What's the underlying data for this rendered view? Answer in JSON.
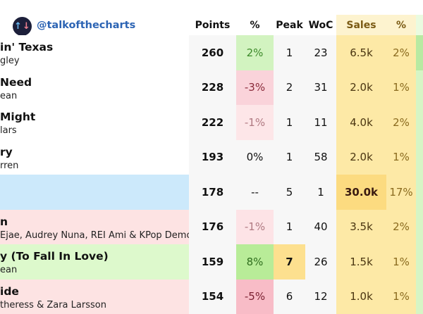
{
  "header": {
    "handle": "@talkofthecharts",
    "logo_icon": "up-down-arrows-icon",
    "columns": [
      "Points",
      "%",
      "Peak",
      "WoC",
      "Sales",
      "%"
    ]
  },
  "colors": {
    "up": "#c9f2b4",
    "down": "#f8c3cc",
    "down_light": "#fde3e6",
    "sales": "#fde9a6",
    "new_entry": "#cce9fb",
    "peak": "#fde08f"
  },
  "rows": [
    {
      "song": "in' Texas",
      "artist": "gley",
      "points": "260",
      "pct": "2%",
      "peak": "1",
      "woc": "23",
      "sales": "6.5k",
      "sales_pct": "2%",
      "row_bg": "#ffffff",
      "pct_bg": "#d2f3c0",
      "pct_color": "#3d8a2a",
      "g_bg": "#b8eaa2"
    },
    {
      "song": "Need",
      "artist": "ean",
      "points": "228",
      "pct": "-3%",
      "peak": "2",
      "woc": "31",
      "sales": "2.0k",
      "sales_pct": "1%",
      "row_bg": "#ffffff",
      "pct_bg": "#fad3da",
      "pct_color": "#8a2a3a"
    },
    {
      "song": "Might",
      "artist": "lars",
      "points": "222",
      "pct": "-1%",
      "peak": "1",
      "woc": "11",
      "sales": "4.0k",
      "sales_pct": "2%",
      "row_bg": "#ffffff",
      "pct_bg": "#fde6e8",
      "pct_color": "#b07a82"
    },
    {
      "song": "ry",
      "artist": "rren",
      "points": "193",
      "pct": "0%",
      "peak": "1",
      "woc": "58",
      "sales": "2.0k",
      "sales_pct": "1%",
      "row_bg": "#ffffff"
    },
    {
      "song": "",
      "artist": "",
      "points": "178",
      "pct": "--",
      "peak": "5",
      "woc": "1",
      "sales": "30.0k",
      "sales_pct": "17%",
      "row_bg": "#cce9fb",
      "sales_bg": "#fcdb80",
      "sales_bold": true
    },
    {
      "song": "n",
      "artist": " Ejae, Audrey Nuna, REI Ami & KPop Demo",
      "points": "176",
      "pct": "-1%",
      "peak": "1",
      "woc": "40",
      "sales": "3.5k",
      "sales_pct": "2%",
      "row_bg": "#fde3e3",
      "pct_bg": "#fde3e6",
      "pct_color": "#b07a82"
    },
    {
      "song": "y (To Fall In Love)",
      "artist": "ean",
      "points": "159",
      "pct": "8%",
      "peak": "7",
      "woc": "26",
      "sales": "1.5k",
      "sales_pct": "1%",
      "row_bg": "#ddf9cc",
      "pct_bg": "#b8ec98",
      "pct_color": "#2f6e1e",
      "peak_bg": "#fde08f",
      "peak_bold": true
    },
    {
      "song": "ide",
      "artist": "theress & Zara Larsson",
      "points": "154",
      "pct": "-5%",
      "peak": "6",
      "woc": "12",
      "sales": "1.0k",
      "sales_pct": "1%",
      "row_bg": "#fde3e3",
      "pct_bg": "#f8bcc7",
      "pct_color": "#7a1f30"
    }
  ]
}
